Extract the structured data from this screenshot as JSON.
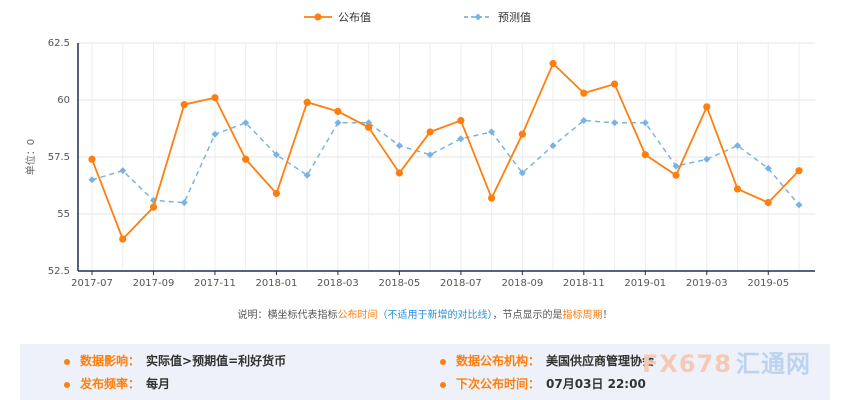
{
  "chart_data": {
    "type": "line",
    "categories": [
      "2017-07",
      "2017-08",
      "2017-09",
      "2017-10",
      "2017-11",
      "2017-12",
      "2018-01",
      "2018-02",
      "2018-03",
      "2018-04",
      "2018-05",
      "2018-06",
      "2018-07",
      "2018-08",
      "2018-09",
      "2018-10",
      "2018-11",
      "2018-12",
      "2019-01",
      "2019-02",
      "2019-03",
      "2019-04",
      "2019-05",
      "2019-06"
    ],
    "x_tick_labels": [
      "2017-07",
      "2017-09",
      "2017-11",
      "2018-01",
      "2018-03",
      "2018-05",
      "2018-07",
      "2018-09",
      "2018-11",
      "2019-01",
      "2019-03",
      "2019-05"
    ],
    "series": [
      {
        "name": "公布值",
        "color": "#ff7f0e",
        "style": "solid",
        "marker": "circle",
        "values": [
          57.4,
          53.9,
          55.3,
          59.8,
          60.1,
          57.4,
          55.9,
          59.9,
          59.5,
          58.8,
          56.8,
          58.6,
          59.1,
          55.7,
          58.5,
          61.6,
          60.3,
          60.7,
          57.6,
          56.7,
          59.7,
          56.1,
          55.5,
          56.9
        ]
      },
      {
        "name": "预测值",
        "color": "#7ab3e3",
        "style": "dashed",
        "marker": "diamond",
        "values": [
          56.5,
          56.9,
          55.6,
          55.5,
          58.5,
          59.0,
          57.6,
          56.7,
          59.0,
          59.0,
          58.0,
          57.6,
          58.3,
          58.6,
          56.8,
          58.0,
          59.1,
          59.0,
          59.0,
          57.1,
          57.4,
          58.0,
          57.0,
          55.4
        ]
      }
    ],
    "ylim": [
      52.5,
      62.5
    ],
    "y_ticks": [
      52.5,
      55,
      57.5,
      60,
      62.5
    ],
    "ylabel": "单位：0",
    "xlabel": "",
    "grid": true,
    "legend_position": "top-center"
  },
  "note": {
    "prefix": "说明：横坐标代表指标",
    "highlight1": "公布时间",
    "paren": "（不适用于新增的对比线）",
    "mid": "，节点显示的是",
    "highlight2": "指标周期",
    "suffix": "！"
  },
  "info": {
    "impact_label": "数据影响：",
    "impact_value": "实际值>预期值=利好货币",
    "frequency_label": "发布频率：",
    "frequency_value": "每月",
    "agency_label": "数据公布机构：",
    "agency_value": "美国供应商管理协会",
    "next_label": "下次公布时间：",
    "next_value": "07月03日 22:00"
  },
  "logo": {
    "en": "FX678",
    "zh": "汇通网"
  }
}
